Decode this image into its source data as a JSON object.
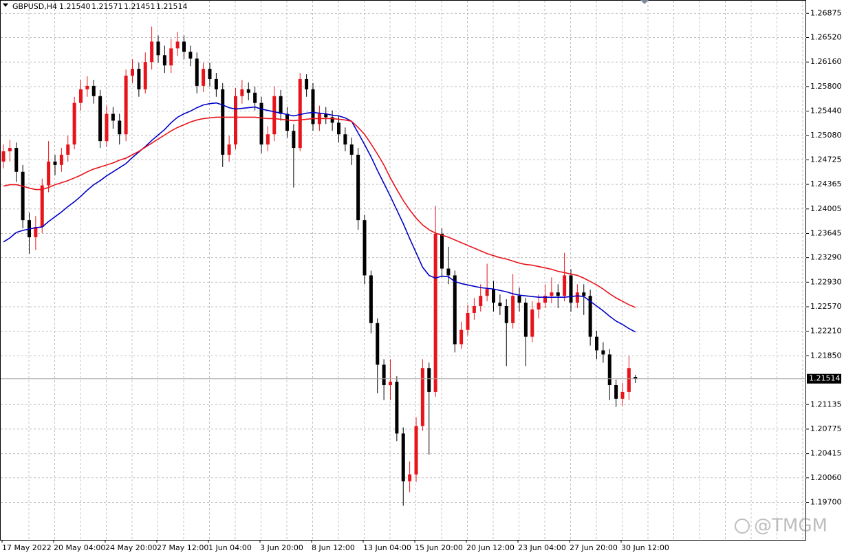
{
  "chart_data": {
    "type": "candlestick",
    "title": "GBPUSD,H4",
    "ohlc_text": [
      "1.21540",
      "1.21571",
      "1.21451",
      "1.21514"
    ],
    "x_labels": [
      "17 May 2022",
      "20 May 04:00",
      "24 May 20:00",
      "27 May 12:00",
      "1 Jun 04:00",
      "3 Jun 20:00",
      "8 Jun 12:00",
      "13 Jun 04:00",
      "15 Jun 20:00",
      "20 Jun 12:00",
      "23 Jun 04:00",
      "27 Jun 20:00",
      "30 Jun 12:00"
    ],
    "ylim": [
      1.1915,
      1.2707
    ],
    "yticks": [
      1.26875,
      {
        "value": 1.2652,
        "label": "1.26520"
      },
      {
        "value": 1.2616,
        "label": "1.26160"
      },
      {
        "value": 1.258,
        "label": "1.25800"
      },
      {
        "value": 1.2544,
        "label": "1.25440"
      },
      {
        "value": 1.2508,
        "label": "1.25080"
      },
      1.24725,
      1.24365,
      1.24005,
      1.23645,
      {
        "value": 1.2329,
        "label": "1.23290"
      },
      {
        "value": 1.2293,
        "label": "1.22930"
      },
      {
        "value": 1.2257,
        "label": "1.22570"
      },
      {
        "value": 1.2221,
        "label": "1.22210"
      },
      {
        "value": 1.2185,
        "label": "1.21850"
      },
      1.21135,
      1.20775,
      1.20415,
      {
        "value": 1.2006,
        "label": "1.20060"
      },
      {
        "value": 1.197,
        "label": "1.19700"
      }
    ],
    "grid": true,
    "bull_color": "#e8141b",
    "bear_color": "#000000",
    "open": [
      1.247,
      1.2485,
      1.249,
      1.2455,
      1.2384,
      1.2359,
      1.2374,
      1.2435,
      1.247,
      1.2465,
      1.248,
      1.2495,
      1.2556,
      1.2576,
      1.2581,
      1.2566,
      1.25,
      1.254,
      1.253,
      1.251,
      1.2596,
      1.2606,
      1.2576,
      1.2616,
      1.2646,
      1.2626,
      1.2611,
      1.2636,
      1.2646,
      1.2631,
      1.2621,
      1.2581,
      1.2606,
      1.2591,
      1.2576,
      1.248,
      1.2495,
      1.2566,
      1.2576,
      1.2571,
      1.2556,
      1.2495,
      1.251,
      1.2566,
      1.254,
      1.2515,
      1.249,
      1.2591,
      1.2576,
      1.2525,
      1.254,
      1.2535,
      1.2527,
      1.251,
      1.2495,
      1.248,
      1.2384,
      1.2303,
      1.2233,
      1.2172,
      1.2142,
      1.2147,
      1.2071,
      1.2001,
      1.2011,
      1.2082,
      1.2167,
      1.2132,
      1.2364,
      1.2313,
      1.2303,
      1.2202,
      1.2223,
      1.2248,
      1.2258,
      1.2273,
      1.2283,
      1.2263,
      1.2258,
      1.2233,
      1.2273,
      1.2263,
      1.2213,
      1.2253,
      1.2263,
      1.2273,
      1.2278,
      1.2273,
      1.2303,
      1.2263,
      1.2278,
      1.2273,
      1.2213,
      1.2193,
      1.2187,
      1.2142,
      1.2122,
      1.2132,
      1.2154
    ],
    "high": [
      1.2495,
      1.2502,
      1.2498,
      1.2465,
      1.2395,
      1.239,
      1.2445,
      1.25,
      1.248,
      1.249,
      1.2508,
      1.2565,
      1.259,
      1.2595,
      1.259,
      1.2575,
      1.2552,
      1.255,
      1.254,
      1.2605,
      1.262,
      1.2615,
      1.263,
      1.2668,
      1.2655,
      1.264,
      1.265,
      1.266,
      1.2655,
      1.264,
      1.263,
      1.2615,
      1.2615,
      1.26,
      1.2585,
      1.2508,
      1.2578,
      1.259,
      1.2586,
      1.258,
      1.2565,
      1.2522,
      1.258,
      1.2575,
      1.255,
      1.2525,
      1.26,
      1.2598,
      1.2585,
      1.2552,
      1.255,
      1.2545,
      1.2538,
      1.252,
      1.2505,
      1.249,
      1.2392,
      1.231,
      1.224,
      1.218,
      1.218,
      1.2155,
      1.208,
      1.203,
      1.2095,
      1.218,
      1.2175,
      1.2405,
      1.2372,
      1.2345,
      1.231,
      1.2235,
      1.226,
      1.227,
      1.229,
      1.232,
      1.2295,
      1.2275,
      1.2268,
      1.2305,
      1.2285,
      1.227,
      1.2265,
      1.2275,
      1.229,
      1.23,
      1.229,
      1.2336,
      1.2312,
      1.229,
      1.229,
      1.2282,
      1.2222,
      1.2205,
      1.2195,
      1.215,
      1.2145,
      1.2185,
      1.21571
    ],
    "low": [
      1.246,
      1.247,
      1.244,
      1.2372,
      1.2335,
      1.234,
      1.2365,
      1.2425,
      1.245,
      1.2455,
      1.247,
      1.2488,
      1.2545,
      1.2565,
      1.2555,
      1.249,
      1.2492,
      1.2518,
      1.2495,
      1.25,
      1.2585,
      1.2565,
      1.257,
      1.2605,
      1.2615,
      1.26,
      1.26,
      1.2625,
      1.262,
      1.261,
      1.257,
      1.2572,
      1.258,
      1.2565,
      1.2462,
      1.247,
      1.2488,
      1.2555,
      1.256,
      1.2545,
      1.2482,
      1.2485,
      1.25,
      1.253,
      1.2505,
      1.2432,
      1.2485,
      1.2565,
      1.2515,
      1.2515,
      1.2525,
      1.2515,
      1.2498,
      1.2485,
      1.2465,
      1.237,
      1.229,
      1.2218,
      1.213,
      1.212,
      1.212,
      1.206,
      1.1965,
      1.1985,
      1.2,
      1.2075,
      1.204,
      1.2125,
      1.23,
      1.229,
      1.219,
      1.2195,
      1.2215,
      1.2238,
      1.225,
      1.2265,
      1.225,
      1.2245,
      1.217,
      1.2225,
      1.225,
      1.217,
      1.2205,
      1.224,
      1.2255,
      1.2262,
      1.2255,
      1.2265,
      1.225,
      1.2255,
      1.2245,
      1.22,
      1.218,
      1.2175,
      1.212,
      1.211,
      1.2112,
      1.212,
      1.21451
    ],
    "close": [
      1.2485,
      1.249,
      1.2455,
      1.2384,
      1.2359,
      1.2374,
      1.2435,
      1.247,
      1.2465,
      1.248,
      1.2495,
      1.2556,
      1.2576,
      1.2581,
      1.2566,
      1.25,
      1.254,
      1.253,
      1.251,
      1.2596,
      1.2606,
      1.2576,
      1.2616,
      1.2646,
      1.2626,
      1.2611,
      1.2636,
      1.2646,
      1.2631,
      1.2621,
      1.2581,
      1.2606,
      1.2591,
      1.2576,
      1.248,
      1.2495,
      1.2566,
      1.2576,
      1.2571,
      1.2556,
      1.2495,
      1.251,
      1.2566,
      1.254,
      1.2515,
      1.249,
      1.2591,
      1.2576,
      1.2525,
      1.254,
      1.2535,
      1.2527,
      1.251,
      1.2495,
      1.248,
      1.2384,
      1.2303,
      1.2233,
      1.2172,
      1.2142,
      1.2147,
      1.2071,
      1.2001,
      1.2011,
      1.2082,
      1.2167,
      1.2132,
      1.2364,
      1.2313,
      1.2303,
      1.2202,
      1.2223,
      1.2248,
      1.2258,
      1.2273,
      1.2283,
      1.2263,
      1.2258,
      1.2233,
      1.2273,
      1.2263,
      1.2213,
      1.2253,
      1.2263,
      1.2273,
      1.2278,
      1.2273,
      1.2303,
      1.2263,
      1.2278,
      1.2273,
      1.2213,
      1.2193,
      1.2187,
      1.2142,
      1.2122,
      1.2132,
      1.2167,
      1.21514
    ],
    "lines": [
      {
        "color": "#0000c8",
        "values": [
          1.2352,
          1.2358,
          1.2366,
          1.2369,
          1.2371,
          1.2373,
          1.2374,
          1.2382,
          1.2389,
          1.2396,
          1.2404,
          1.2411,
          1.2419,
          1.2428,
          1.2436,
          1.2442,
          1.2449,
          1.2455,
          1.2461,
          1.2467,
          1.2476,
          1.2484,
          1.2492,
          1.2501,
          1.2509,
          1.2517,
          1.2527,
          1.2535,
          1.254,
          1.2544,
          1.2549,
          1.2553,
          1.2555,
          1.2556,
          1.2553,
          1.2549,
          1.2547,
          1.2548,
          1.2549,
          1.255,
          1.2547,
          1.2545,
          1.2543,
          1.2541,
          1.2539,
          1.2537,
          1.2539,
          1.2541,
          1.2542,
          1.2541,
          1.254,
          1.2538,
          1.2537,
          1.2534,
          1.2529,
          1.2512,
          1.2495,
          1.2477,
          1.2457,
          1.2438,
          1.2419,
          1.2399,
          1.2379,
          1.2357,
          1.2336,
          1.2315,
          1.2303,
          1.2299,
          1.2302,
          1.2301,
          1.2294,
          1.2291,
          1.2289,
          1.2287,
          1.2285,
          1.2284,
          1.2283,
          1.2281,
          1.2279,
          1.2276,
          1.2274,
          1.2273,
          1.2272,
          1.2271,
          1.2271,
          1.2271,
          1.2271,
          1.2271,
          1.2272,
          1.2273,
          1.2272,
          1.2265,
          1.2258,
          1.2251,
          1.2243,
          1.2236,
          1.2231,
          1.2225,
          1.222
        ]
      },
      {
        "color": "#e8141b",
        "values": [
          1.2434,
          1.2436,
          1.2436,
          1.2434,
          1.2431,
          1.2429,
          1.2429,
          1.2432,
          1.2436,
          1.2439,
          1.2442,
          1.2446,
          1.245,
          1.2455,
          1.2459,
          1.2462,
          1.2465,
          1.2468,
          1.2472,
          1.2475,
          1.248,
          1.2485,
          1.2491,
          1.2497,
          1.2503,
          1.2509,
          1.2515,
          1.252,
          1.2524,
          1.2528,
          1.2531,
          1.2533,
          1.2534,
          1.2535,
          1.2535,
          1.2535,
          1.2535,
          1.2535,
          1.2535,
          1.2535,
          1.2534,
          1.2533,
          1.2533,
          1.2532,
          1.2531,
          1.253,
          1.2531,
          1.2532,
          1.2533,
          1.2533,
          1.2533,
          1.2533,
          1.2532,
          1.2531,
          1.2529,
          1.252,
          1.251,
          1.2496,
          1.2481,
          1.2465,
          1.2446,
          1.2429,
          1.2413,
          1.2399,
          1.2387,
          1.2377,
          1.237,
          1.2365,
          1.2362,
          1.2359,
          1.2355,
          1.2351,
          1.2347,
          1.2343,
          1.2339,
          1.2335,
          1.2332,
          1.2329,
          1.2327,
          1.2324,
          1.2321,
          1.2319,
          1.2318,
          1.2316,
          1.2314,
          1.2312,
          1.2309,
          1.2307,
          1.2305,
          1.2303,
          1.2299,
          1.2294,
          1.2289,
          1.2283,
          1.2276,
          1.227,
          1.2265,
          1.226,
          1.2256
        ]
      }
    ],
    "last_price": {
      "value": 1.21514,
      "label": "1.21514"
    },
    "watermark": "@TMGM"
  }
}
